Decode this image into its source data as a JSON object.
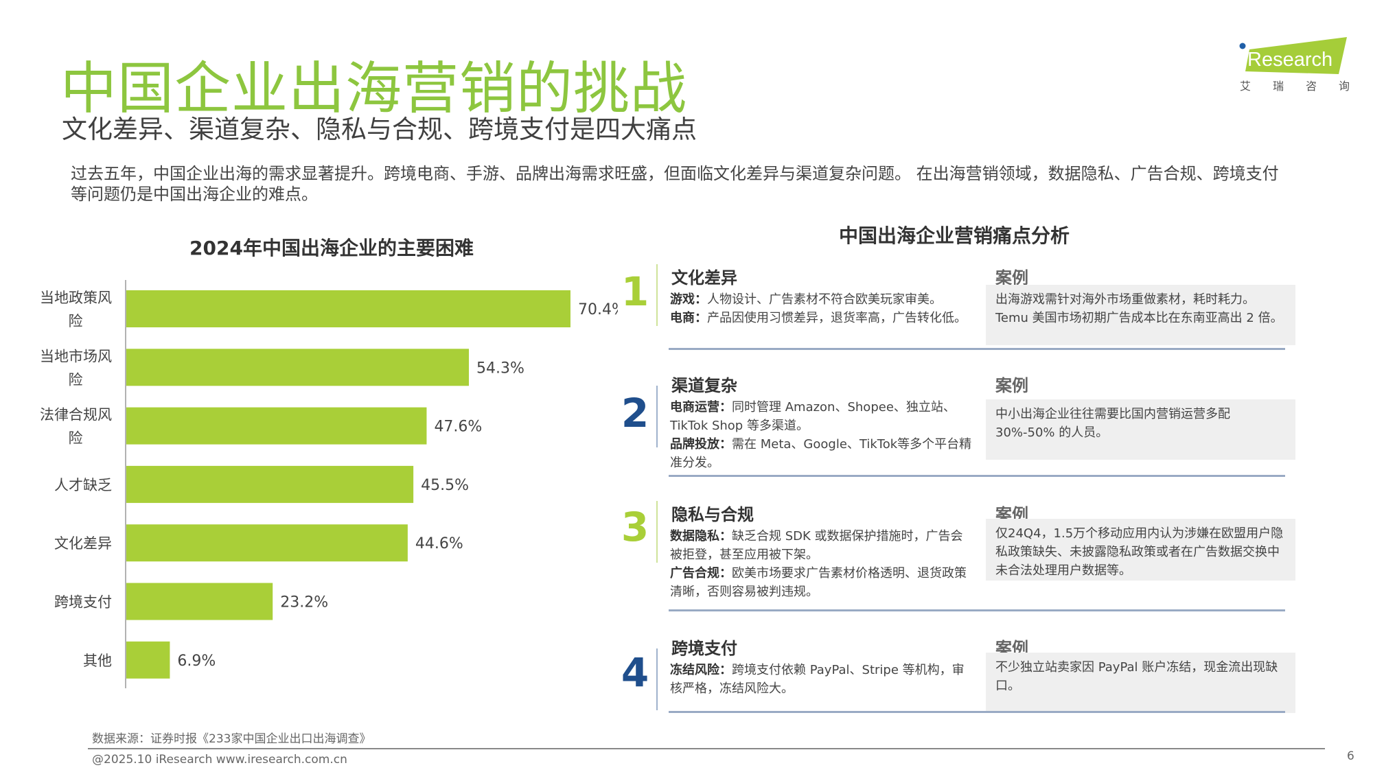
{
  "header": {
    "title": "中国企业出海营销的挑战",
    "subtitle": "文化差异、渠道复杂、隐私与合规、跨境支付是四大痛点",
    "intro": "过去五年，中国企业出海的需求显著提升。跨境电商、手游、品牌出海需求旺盛，但面临文化差异与渠道复杂问题。 在出海营销领域，数据隐私、广告合规、跨境支付等问题仍是中国出海企业的难点。"
  },
  "logo": {
    "brand": "iResearch",
    "cn_chars": [
      "艾",
      "瑞",
      "咨",
      "询"
    ],
    "brand_color": "#a5cd39",
    "dot_color": "#1f5fa8"
  },
  "chart_data": {
    "type": "bar",
    "orientation": "horizontal",
    "title": "2024年中国出海企业的主要困难",
    "categories": [
      "当地政策风险",
      "当地市场风险",
      "法律合规风险",
      "人才缺乏",
      "文化差异",
      "跨境支付",
      "其他"
    ],
    "values": [
      70.4,
      54.3,
      47.6,
      45.5,
      44.6,
      23.2,
      6.9
    ],
    "value_labels": [
      "70.4%",
      "54.3%",
      "47.6%",
      "45.5%",
      "44.6%",
      "23.2%",
      "6.9%"
    ],
    "unit": "%",
    "bar_color": "#a9cf38",
    "grid": false
  },
  "analysis": {
    "title": "中国出海企业营销痛点分析",
    "case_label": "案例",
    "sections": [
      {
        "number": "1",
        "color": "#a9cf38",
        "title": "文化差异",
        "items": [
          {
            "key": "游戏：",
            "text": "人物设计、广告素材不符合欧美玩家审美。"
          },
          {
            "key": "电商：",
            "text": "产品因使用习惯差异，退货率高，广告转化低。"
          }
        ],
        "case": "出海游戏需针对海外市场重做素材，耗时耗力。Temu 美国市场初期广告成本比在东南亚高出 2 倍。"
      },
      {
        "number": "2",
        "color": "#1f4e8c",
        "title": "渠道复杂",
        "items": [
          {
            "key": "电商运营：",
            "text": "同时管理 Amazon、Shopee、独立站、TikTok Shop 等多渠道。"
          },
          {
            "key": "品牌投放：",
            "text": "需在 Meta、Google、TikTok等多个平台精准分发。"
          }
        ],
        "case": "中小出海企业往往需要比国内营销运营多配 30%-50% 的人员。"
      },
      {
        "number": "3",
        "color": "#a9cf38",
        "title": "隐私与合规",
        "items": [
          {
            "key": "数据隐私：",
            "text": "缺乏合规 SDK 或数据保护措施时，广告会被拒登，甚至应用被下架。"
          },
          {
            "key": "广告合规：",
            "text": "欧美市场要求广告素材价格透明、退货政策清晰，否则容易被判违规。"
          }
        ],
        "case": "仅24Q4，1.5万个移动应用内认为涉嫌在欧盟用户隐私政策缺失、未披露隐私政策或者在广告数据交换中未合法处理用户数据等。"
      },
      {
        "number": "4",
        "color": "#1f4e8c",
        "title": "跨境支付",
        "items": [
          {
            "key": "冻结风险：",
            "text": "跨境支付依赖 PayPal、Stripe 等机构，审核严格，冻结风险大。"
          }
        ],
        "case": "不少独立站卖家因 PayPal 账户冻结，现金流出现缺口。"
      }
    ]
  },
  "footer": {
    "source": "数据来源：证券时报《233家中国企业出口出海调查》",
    "copyright": "@2025.10 iResearch www.iresearch.com.cn",
    "page": "6"
  }
}
